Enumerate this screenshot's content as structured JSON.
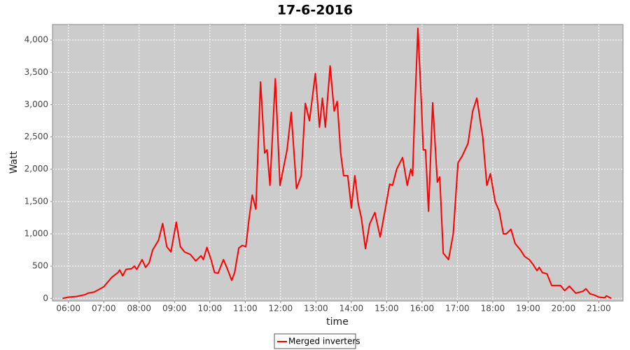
{
  "chart_data": {
    "type": "line",
    "title": "17-6-2016",
    "x_label": "time",
    "y_label": "Watt",
    "x": [
      "05:50",
      "06:00",
      "06:14",
      "06:29",
      "06:33",
      "06:44",
      "07:00",
      "07:14",
      "07:24",
      "07:27",
      "07:32",
      "07:38",
      "07:47",
      "07:52",
      "07:56",
      "08:05",
      "08:11",
      "08:17",
      "08:23",
      "08:33",
      "08:40",
      "08:47",
      "08:54",
      "09:03",
      "09:10",
      "09:17",
      "09:27",
      "09:36",
      "09:45",
      "09:49",
      "09:55",
      "10:02",
      "10:08",
      "10:14",
      "10:23",
      "10:30",
      "10:37",
      "10:42",
      "10:49",
      "10:55",
      "11:01",
      "11:06",
      "11:12",
      "11:18",
      "11:26",
      "11:33",
      "11:37",
      "11:42",
      "11:51",
      "11:59",
      "12:11",
      "12:18",
      "12:27",
      "12:35",
      "12:42",
      "12:49",
      "12:59",
      "13:06",
      "13:11",
      "13:16",
      "13:24",
      "13:31",
      "13:36",
      "13:42",
      "13:47",
      "13:54",
      "14:00",
      "14:06",
      "14:12",
      "14:17",
      "14:24",
      "14:31",
      "14:40",
      "14:49",
      "14:58",
      "15:05",
      "15:10",
      "15:17",
      "15:27",
      "15:35",
      "15:41",
      "15:44",
      "15:48",
      "15:53",
      "15:59",
      "16:02",
      "16:06",
      "16:11",
      "16:18",
      "16:26",
      "16:30",
      "16:36",
      "16:45",
      "16:53",
      "17:01",
      "17:08",
      "17:18",
      "17:26",
      "17:33",
      "17:43",
      "17:50",
      "17:56",
      "18:04",
      "18:11",
      "18:18",
      "18:23",
      "18:31",
      "18:38",
      "18:47",
      "18:54",
      "19:02",
      "19:08",
      "19:15",
      "19:19",
      "19:24",
      "19:32",
      "19:40",
      "19:47",
      "19:55",
      "20:02",
      "20:10",
      "20:21",
      "20:33",
      "20:38",
      "20:45",
      "20:53",
      "21:00",
      "21:10",
      "21:13",
      "21:21"
    ],
    "series": [
      {
        "name": "Merged inverters",
        "color": "#ff0000",
        "values": [
          0,
          20,
          30,
          60,
          80,
          100,
          180,
          330,
          400,
          440,
          350,
          450,
          460,
          500,
          450,
          600,
          480,
          550,
          750,
          900,
          1160,
          800,
          720,
          1180,
          800,
          720,
          680,
          580,
          660,
          600,
          790,
          600,
          400,
          390,
          600,
          450,
          280,
          400,
          780,
          820,
          800,
          1200,
          1600,
          1380,
          3350,
          2250,
          2300,
          1750,
          3400,
          1750,
          2300,
          2880,
          1700,
          1900,
          3020,
          2750,
          3480,
          2650,
          3100,
          2650,
          3600,
          2900,
          3050,
          2250,
          1900,
          1900,
          1400,
          1900,
          1450,
          1250,
          770,
          1150,
          1330,
          950,
          1400,
          1770,
          1750,
          2000,
          2180,
          1750,
          2000,
          1900,
          3000,
          4180,
          3000,
          2300,
          2300,
          1350,
          3030,
          1800,
          1880,
          700,
          600,
          1000,
          2100,
          2200,
          2400,
          2900,
          3100,
          2500,
          1750,
          1930,
          1500,
          1350,
          1000,
          1000,
          1070,
          850,
          750,
          650,
          600,
          530,
          430,
          480,
          400,
          380,
          200,
          200,
          200,
          120,
          190,
          80,
          110,
          150,
          70,
          50,
          20,
          10,
          40,
          0
        ]
      }
    ],
    "xlim": [
      "05:33",
      "21:41"
    ],
    "xticks": [
      "06:00",
      "07:00",
      "08:00",
      "09:00",
      "10:00",
      "11:00",
      "12:00",
      "13:00",
      "14:00",
      "15:00",
      "16:00",
      "17:00",
      "18:00",
      "19:00",
      "20:00",
      "21:00"
    ],
    "ylim": [
      -40,
      4240
    ],
    "yticks": [
      0,
      500,
      {
        "value": 1000,
        "label": "1,000"
      },
      {
        "value": 1500,
        "label": "1,500"
      },
      {
        "value": 2000,
        "label": "2,000"
      },
      {
        "value": 2500,
        "label": "2,500"
      },
      {
        "value": 3000,
        "label": "3,000"
      },
      {
        "value": 3500,
        "label": "3,500"
      },
      {
        "value": 4000,
        "label": "4,000"
      }
    ],
    "grid": true
  }
}
